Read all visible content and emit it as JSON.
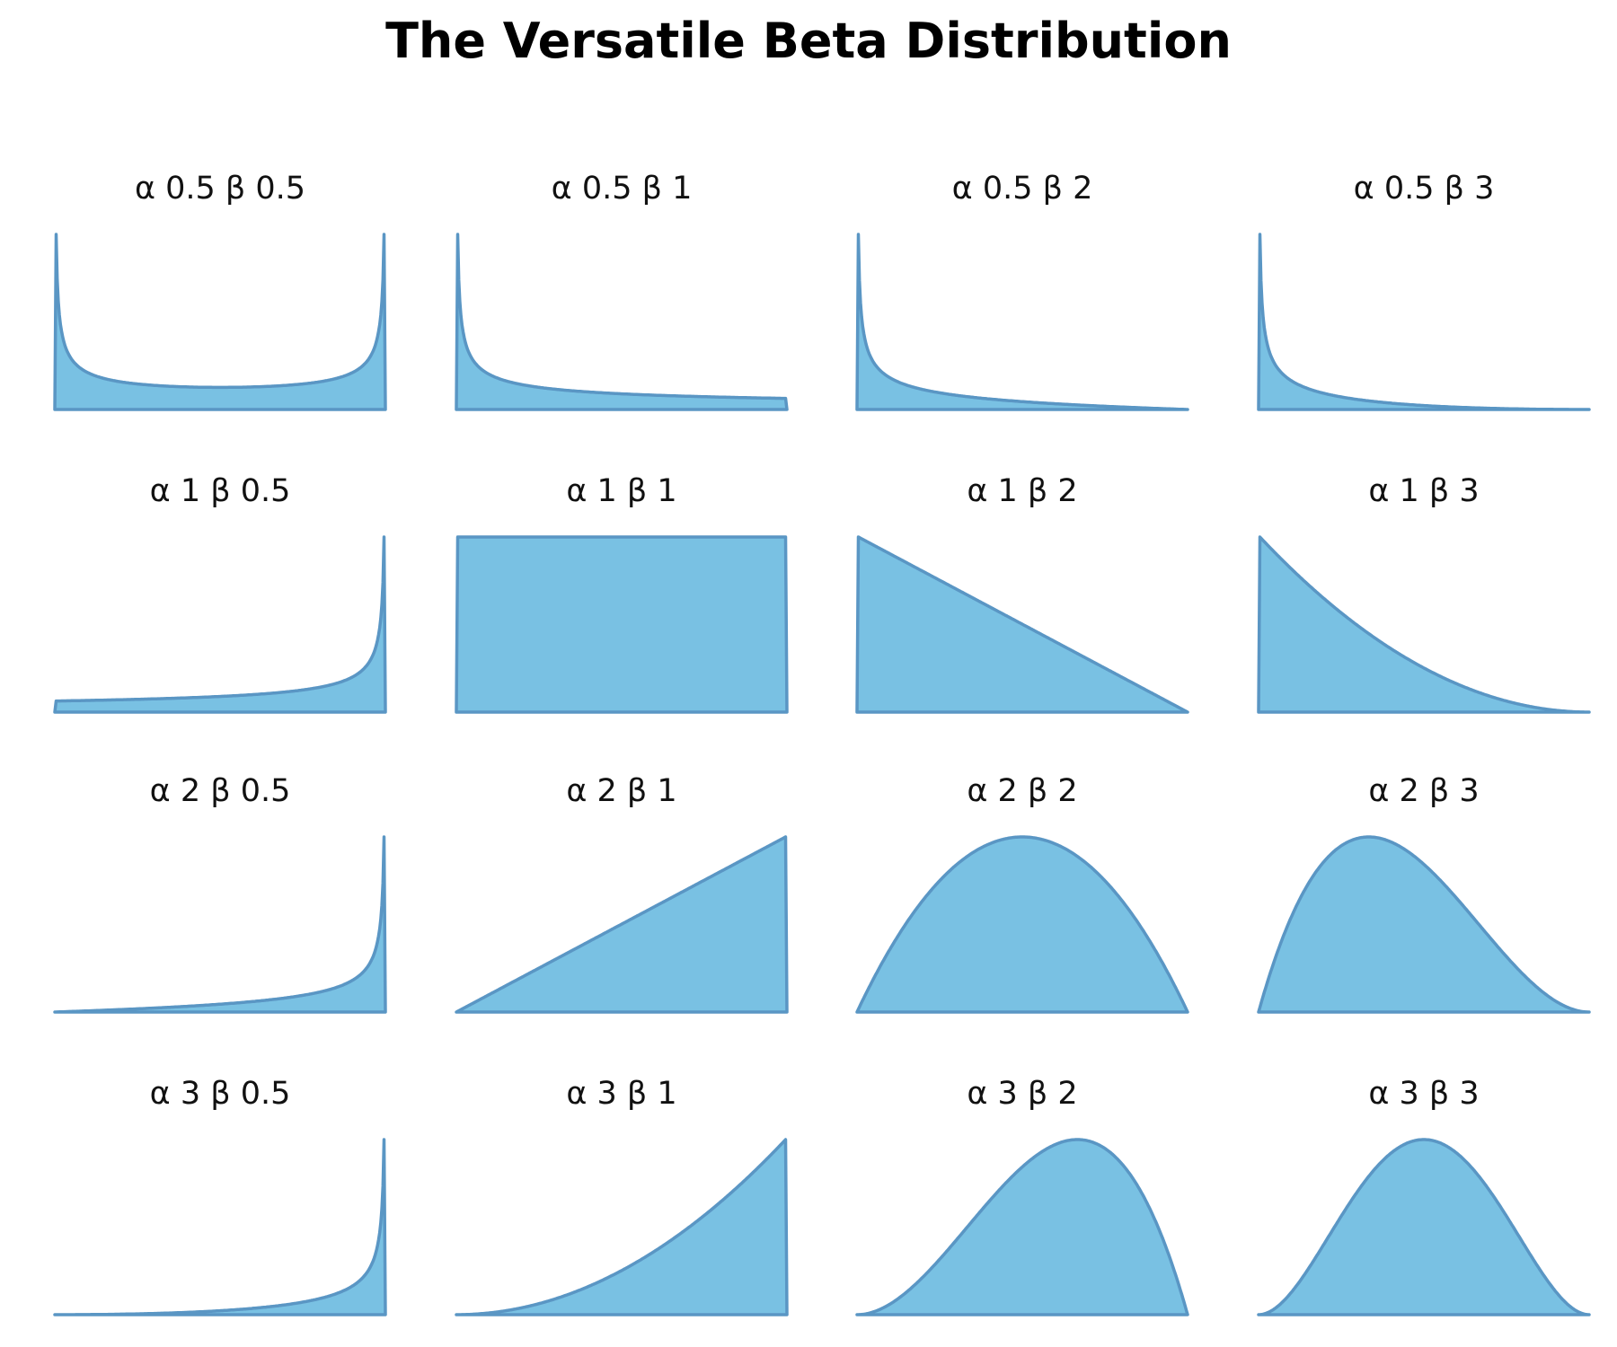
{
  "chart_data": {
    "type": "area",
    "title": "The Versatile Beta Distribution",
    "fill_color": "#79c1e3",
    "line_color": "#5a96c4",
    "x_range": [
      0,
      1
    ],
    "y_scale": "each panel normalized to its own maximum",
    "axes_visible": false,
    "panels": [
      {
        "label": "α 0.5  β 0.5",
        "alpha": 0.5,
        "beta": 0.5
      },
      {
        "label": "α 0.5  β 1",
        "alpha": 0.5,
        "beta": 1
      },
      {
        "label": "α 0.5  β 2",
        "alpha": 0.5,
        "beta": 2
      },
      {
        "label": "α 0.5  β 3",
        "alpha": 0.5,
        "beta": 3
      },
      {
        "label": "α 1  β 0.5",
        "alpha": 1,
        "beta": 0.5
      },
      {
        "label": "α 1  β 1",
        "alpha": 1,
        "beta": 1
      },
      {
        "label": "α 1  β 2",
        "alpha": 1,
        "beta": 2
      },
      {
        "label": "α 1  β 3",
        "alpha": 1,
        "beta": 3
      },
      {
        "label": "α 2  β 0.5",
        "alpha": 2,
        "beta": 0.5
      },
      {
        "label": "α 2  β 1",
        "alpha": 2,
        "beta": 1
      },
      {
        "label": "α 2  β 2",
        "alpha": 2,
        "beta": 2
      },
      {
        "label": "α 2  β 3",
        "alpha": 2,
        "beta": 3
      },
      {
        "label": "α 3  β 0.5",
        "alpha": 3,
        "beta": 0.5
      },
      {
        "label": "α 3  β 1",
        "alpha": 3,
        "beta": 1
      },
      {
        "label": "α 3  β 2",
        "alpha": 3,
        "beta": 2
      },
      {
        "label": "α 3  β 3",
        "alpha": 3,
        "beta": 3
      }
    ]
  }
}
